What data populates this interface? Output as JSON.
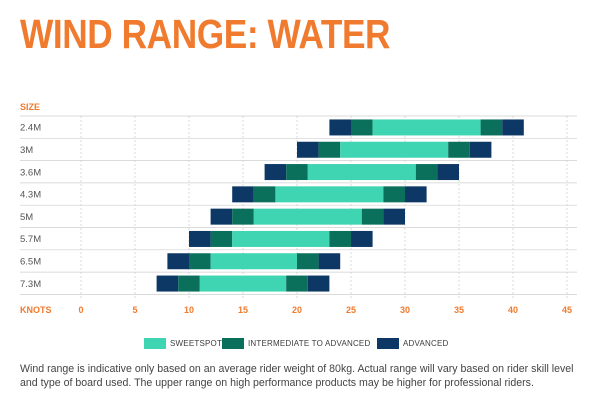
{
  "title": "WIND RANGE: WATER",
  "colors": {
    "title": "#f07a2d",
    "axis_labels": "#f07a2d",
    "sweetspot": "#3fd4b2",
    "intermediate": "#0a705c",
    "advanced": "#0d3865",
    "grid": "#cfcfcf"
  },
  "chart_data": {
    "type": "bar",
    "orientation": "horizontal-range",
    "y_axis_label": "SIZE",
    "x_axis_label": "KNOTS",
    "categories": [
      "2.4M",
      "3M",
      "3.6M",
      "4.3M",
      "5M",
      "5.7M",
      "6.5M",
      "7.3M"
    ],
    "xlim": [
      0,
      45
    ],
    "xticks": [
      0,
      5,
      10,
      15,
      20,
      25,
      30,
      35,
      40,
      45
    ],
    "grid": "vertical-and-row-separators",
    "legend": [
      {
        "key": "sweetspot",
        "label": "SWEETSPOT",
        "color": "#3fd4b2"
      },
      {
        "key": "intermediate",
        "label": "INTERMEDIATE TO ADVANCED",
        "color": "#0a705c"
      },
      {
        "key": "advanced",
        "label": "ADVANCED",
        "color": "#0d3865"
      }
    ],
    "legend_position": "bottom-center",
    "ranges": [
      {
        "size": "2.4M",
        "advanced_low": 23,
        "intermediate_low": 25,
        "sweetspot": [
          27,
          37
        ],
        "intermediate_high": 39,
        "advanced_high": 41
      },
      {
        "size": "3M",
        "advanced_low": 20,
        "intermediate_low": 22,
        "sweetspot": [
          24,
          34
        ],
        "intermediate_high": 36,
        "advanced_high": 38
      },
      {
        "size": "3.6M",
        "advanced_low": 17,
        "intermediate_low": 19,
        "sweetspot": [
          21,
          31
        ],
        "intermediate_high": 33,
        "advanced_high": 35
      },
      {
        "size": "4.3M",
        "advanced_low": 14,
        "intermediate_low": 16,
        "sweetspot": [
          18,
          28
        ],
        "intermediate_high": 30,
        "advanced_high": 32
      },
      {
        "size": "5M",
        "advanced_low": 12,
        "intermediate_low": 14,
        "sweetspot": [
          16,
          26
        ],
        "intermediate_high": 28,
        "advanced_high": 30
      },
      {
        "size": "5.7M",
        "advanced_low": 10,
        "intermediate_low": 12,
        "sweetspot": [
          14,
          23
        ],
        "intermediate_high": 25,
        "advanced_high": 27
      },
      {
        "size": "6.5M",
        "advanced_low": 8,
        "intermediate_low": 10,
        "sweetspot": [
          12,
          20
        ],
        "intermediate_high": 22,
        "advanced_high": 24
      },
      {
        "size": "7.3M",
        "advanced_low": 7,
        "intermediate_low": 9,
        "sweetspot": [
          11,
          19
        ],
        "intermediate_high": 21,
        "advanced_high": 23
      }
    ]
  },
  "note": "Wind range is indicative only based on an average rider weight of 80kg. Actual range will vary based on rider skill level and type of board used. The upper range on high performance products may be higher for professional riders."
}
